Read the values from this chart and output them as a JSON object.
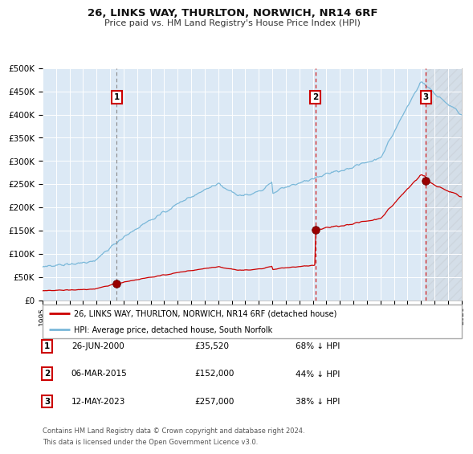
{
  "title": "26, LINKS WAY, THURLTON, NORWICH, NR14 6RF",
  "subtitle": "Price paid vs. HM Land Registry's House Price Index (HPI)",
  "x_start_year": 1995,
  "x_end_year": 2026,
  "y_max": 500000,
  "y_ticks": [
    0,
    50000,
    100000,
    150000,
    200000,
    250000,
    300000,
    350000,
    400000,
    450000,
    500000
  ],
  "y_tick_labels": [
    "£0",
    "£50K",
    "£100K",
    "£150K",
    "£200K",
    "£250K",
    "£300K",
    "£350K",
    "£400K",
    "£450K",
    "£500K"
  ],
  "bg_color": "#dce9f5",
  "hpi_color": "#7ab8d9",
  "price_color": "#cc0000",
  "sale1_date": 2000.49,
  "sale1_price": 35520,
  "sale2_date": 2015.18,
  "sale2_price": 152000,
  "sale3_date": 2023.36,
  "sale3_price": 257000,
  "legend_line1": "26, LINKS WAY, THURLTON, NORWICH, NR14 6RF (detached house)",
  "legend_line2": "HPI: Average price, detached house, South Norfolk",
  "table_rows": [
    [
      "1",
      "26-JUN-2000",
      "£35,520",
      "68% ↓ HPI"
    ],
    [
      "2",
      "06-MAR-2015",
      "£152,000",
      "44% ↓ HPI"
    ],
    [
      "3",
      "12-MAY-2023",
      "£257,000",
      "38% ↓ HPI"
    ]
  ],
  "footnote1": "Contains HM Land Registry data © Crown copyright and database right 2024.",
  "footnote2": "This data is licensed under the Open Government Licence v3.0."
}
